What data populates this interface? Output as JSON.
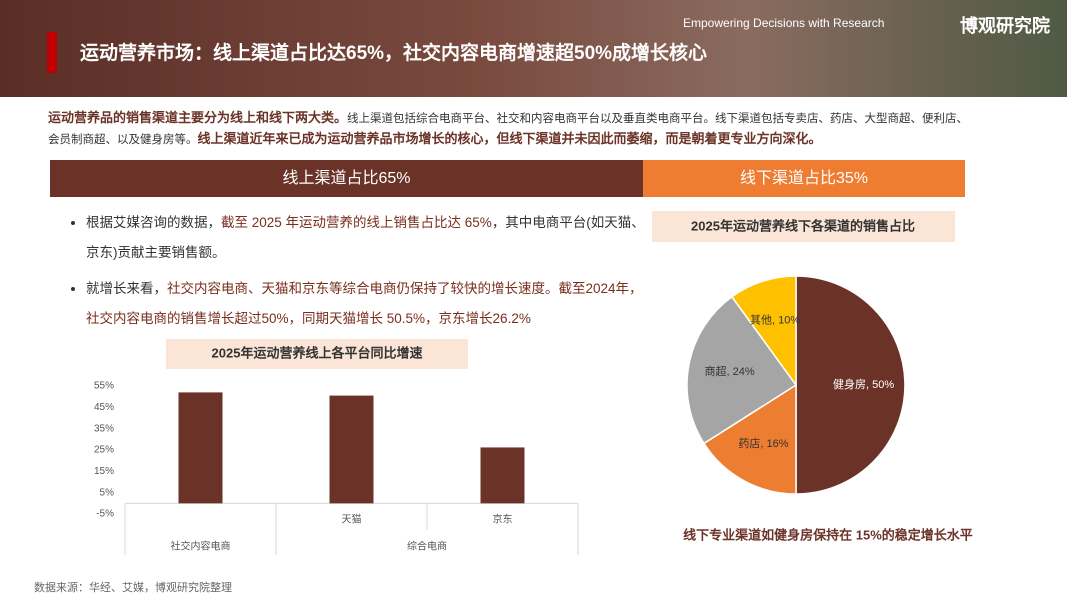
{
  "header": {
    "title": "运动营养市场：线上渠道占比达65%，社交内容电商增速超50%成增长核心",
    "tagline": "Empowering Decisions with Research",
    "brand": "博观研究院"
  },
  "intro": [
    {
      "text": "运动营养品的销售渠道主要分为线上和线下两大类。",
      "emphasis": true
    },
    {
      "text": "线上渠道包括综合电商平台、社交和内容电商平台以及垂直类电商平台。线下渠道包括专卖店、药店、大型商超、便利店、会员制商超、以及健身房等。",
      "emphasis": false
    },
    {
      "text": "线上渠道近年来已成为运动营养品市场增长的核心，但线下渠道并未因此而萎缩，而是朝着更专业方向深化。",
      "emphasis": true
    }
  ],
  "tabs": [
    "线上渠道占比65%",
    "线下渠道占比35%"
  ],
  "bullets": [
    [
      {
        "text": "根据艾媒咨询的数据，",
        "emphasis": false
      },
      {
        "text": "截至 2025 年运动营养的线上销售占比达 65%",
        "emphasis": true
      },
      {
        "text": "，其中电商平台(如天猫、京东)贡献主要销售额。",
        "emphasis": false
      }
    ],
    [
      {
        "text": "就增长来看，",
        "emphasis": false
      },
      {
        "text": "社交内容电商、天猫和京东等综合电商仍保持了较快的增长速度。截至2024年，社交内容电商的销售增长超过50%，同期天猫增长 50.5%，京东增长26.2%",
        "emphasis": true
      }
    ]
  ],
  "chart_data": [
    {
      "type": "bar",
      "title": "2025年运动营养线上各平台同比增速",
      "groups": [
        {
          "label": "社交内容电商",
          "categories": [
            null
          ]
        },
        {
          "label": "综合电商",
          "categories": [
            "天猫",
            "京东"
          ]
        }
      ],
      "values": [
        52,
        50.5,
        26.2
      ],
      "color": "#6b3328",
      "ylim": [
        -5,
        55
      ],
      "yticks": [
        {
          "value": -5,
          "label": "-5%"
        },
        {
          "value": 5,
          "label": "5%"
        },
        {
          "value": 15,
          "label": "15%"
        },
        {
          "value": 25,
          "label": "25%"
        },
        {
          "value": 35,
          "label": "35%"
        },
        {
          "value": 45,
          "label": "45%"
        },
        {
          "value": 55,
          "label": "55%"
        }
      ]
    },
    {
      "type": "pie",
      "title": "2025年运动营养线下各渠道的销售占比",
      "categories": [
        "健身房",
        "药店",
        "商超",
        "其他"
      ],
      "values": [
        50,
        16,
        24,
        10
      ],
      "value_labels": [
        "健身房, 50%",
        "药店, 16%",
        "商超, 24%",
        "其他, 10%"
      ],
      "colors": [
        "#6b3328",
        "#ed7d31",
        "#a5a5a5",
        "#ffc000"
      ],
      "caption": "线下专业渠道如健身房保持在 15%的稳定增长水平"
    }
  ],
  "source": "数据来源：华经、艾媒，博观研究院整理"
}
